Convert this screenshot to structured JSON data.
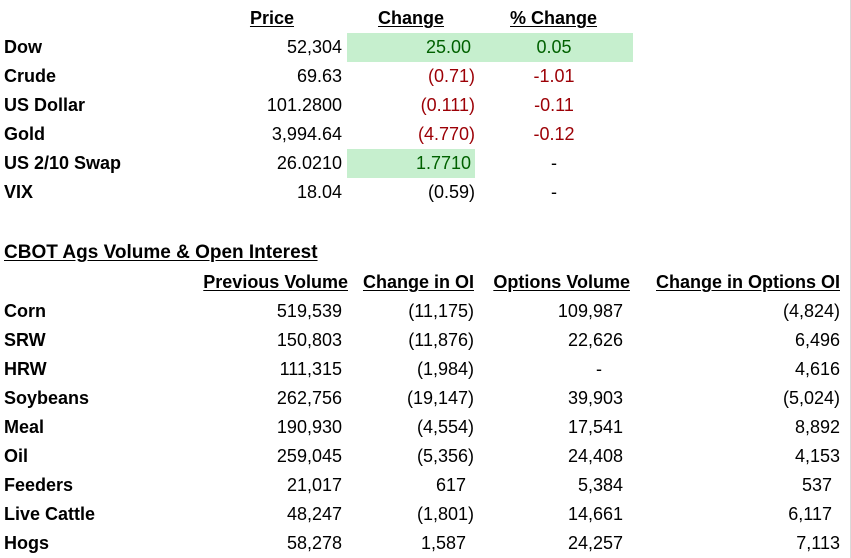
{
  "markets": {
    "headers": {
      "price": "Price",
      "change": "Change ",
      "pct_change": "% Change"
    },
    "rows": [
      {
        "label": "Dow",
        "price": "52,304",
        "change": "25.00",
        "pct": "0.05"
      },
      {
        "label": "Crude",
        "price": "69.63",
        "change": "(0.71)",
        "pct": "-1.01"
      },
      {
        "label": "US Dollar",
        "price": "101.2800",
        "change": "(0.111)",
        "pct": "-0.11"
      },
      {
        "label": "Gold",
        "price": "3,994.64",
        "change": "(4.770)",
        "pct": "-0.12"
      },
      {
        "label": "US 2/10 Swap",
        "price": "26.0210",
        "change": "1.7710",
        "pct": "-"
      },
      {
        "label": "VIX",
        "price": "18.04",
        "change": "(0.59)",
        "pct": "-"
      }
    ]
  },
  "ags": {
    "title": "CBOT Ags Volume & Open Interest",
    "headers": {
      "prev_volume": "Previous Volume",
      "change_oi": "Change in OI",
      "options_volume": "Options Volume",
      "change_options_oi": "Change in Options OI"
    },
    "rows": [
      {
        "label": "Corn",
        "prev_volume": "519,539",
        "change_oi": "(11,175)",
        "options_volume": "109,987",
        "change_options_oi": "(4,824)"
      },
      {
        "label": "SRW",
        "prev_volume": "150,803",
        "change_oi": "(11,876)",
        "options_volume": "22,626",
        "change_options_oi": "6,496"
      },
      {
        "label": "HRW",
        "prev_volume": "111,315",
        "change_oi": "(1,984)",
        "options_volume": "-",
        "change_options_oi": "4,616"
      },
      {
        "label": "Soybeans",
        "prev_volume": "262,756",
        "change_oi": "(19,147)",
        "options_volume": "39,903",
        "change_options_oi": "(5,024)"
      },
      {
        "label": "Meal",
        "prev_volume": "190,930",
        "change_oi": "(4,554)",
        "options_volume": "17,541",
        "change_options_oi": "8,892"
      },
      {
        "label": "Oil",
        "prev_volume": "259,045",
        "change_oi": "(5,356)",
        "options_volume": "24,408",
        "change_options_oi": "4,153"
      },
      {
        "label": "Feeders",
        "prev_volume": "21,017",
        "change_oi": "617",
        "options_volume": "5,384",
        "change_options_oi": "537"
      },
      {
        "label": "Live Cattle",
        "prev_volume": "48,247",
        "change_oi": "(1,801)",
        "options_volume": "14,661",
        "change_options_oi": "6,117"
      },
      {
        "label": "Hogs",
        "prev_volume": "58,278",
        "change_oi": "1,587",
        "options_volume": "24,257",
        "change_options_oi": "7,113"
      }
    ]
  },
  "colors": {
    "positive_fill": "#c6efce",
    "positive_text": "#006100",
    "negative_text": "#9c0006",
    "gridline": "#d9d9d9"
  }
}
